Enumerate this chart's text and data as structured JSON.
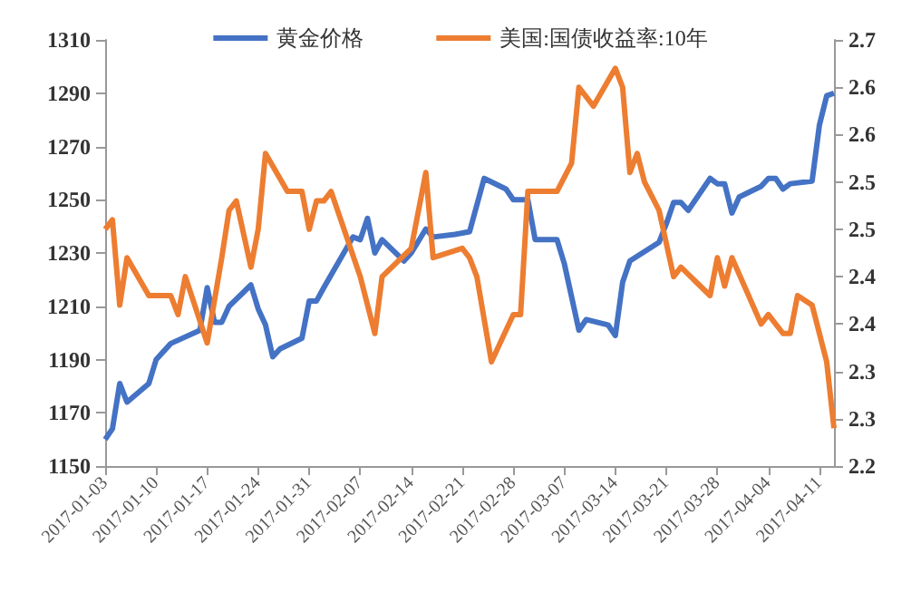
{
  "chart_data": {
    "type": "line",
    "legend": "top",
    "grid": false,
    "marker": "none",
    "line_style": "solid",
    "xlim": [
      "2017-01-03",
      "2017-04-13"
    ],
    "xticks": [
      "2017-01-03",
      "2017-01-10",
      "2017-01-17",
      "2017-01-24",
      "2017-01-31",
      "2017-02-07",
      "2017-02-14",
      "2017-02-21",
      "2017-02-28",
      "2017-03-07",
      "2017-03-14",
      "2017-03-21",
      "2017-03-28",
      "2017-04-04",
      "2017-04-11"
    ],
    "ylim": [
      1150,
      1310
    ],
    "yticks": [
      1150,
      1170,
      1190,
      1210,
      1230,
      1250,
      1270,
      1290,
      1310
    ],
    "y2lim": [
      2.2,
      2.65
    ],
    "y2ticks": [
      {
        "value": 2.2,
        "label": "2.2"
      },
      {
        "value": 2.25,
        "label": "2.3"
      },
      {
        "value": 2.3,
        "label": "2.3"
      },
      {
        "value": 2.35,
        "label": "2.4"
      },
      {
        "value": 2.4,
        "label": "2.4"
      },
      {
        "value": 2.45,
        "label": "2.5"
      },
      {
        "value": 2.5,
        "label": "2.5"
      },
      {
        "value": 2.55,
        "label": "2.6"
      },
      {
        "value": 2.6,
        "label": "2.6"
      },
      {
        "value": 2.65,
        "label": "2.7"
      }
    ],
    "series": [
      {
        "name": "黄金价格",
        "color": "#4472c4",
        "x": [
          "2017-01-03",
          "2017-01-04",
          "2017-01-05",
          "2017-01-06",
          "2017-01-09",
          "2017-01-10",
          "2017-01-12",
          "2017-01-16",
          "2017-01-17",
          "2017-01-18",
          "2017-01-19",
          "2017-01-20",
          "2017-01-23",
          "2017-01-24",
          "2017-01-25",
          "2017-01-26",
          "2017-01-27",
          "2017-01-30",
          "2017-01-31",
          "2017-02-01",
          "2017-02-02",
          "2017-02-06",
          "2017-02-07",
          "2017-02-08",
          "2017-02-09",
          "2017-02-10",
          "2017-02-13",
          "2017-02-14",
          "2017-02-16",
          "2017-02-17",
          "2017-02-20",
          "2017-02-22",
          "2017-02-24",
          "2017-02-27",
          "2017-02-28",
          "2017-03-02",
          "2017-03-03",
          "2017-03-06",
          "2017-03-07",
          "2017-03-09",
          "2017-03-10",
          "2017-03-13",
          "2017-03-14",
          "2017-03-15",
          "2017-03-16",
          "2017-03-20",
          "2017-03-21",
          "2017-03-22",
          "2017-03-23",
          "2017-03-24",
          "2017-03-27",
          "2017-03-28",
          "2017-03-29",
          "2017-03-30",
          "2017-03-31",
          "2017-04-03",
          "2017-04-04",
          "2017-04-05",
          "2017-04-06",
          "2017-04-07",
          "2017-04-10",
          "2017-04-11",
          "2017-04-12",
          "2017-04-13"
        ],
        "values": [
          1160,
          1164,
          1181,
          1174,
          1181,
          1190,
          1196,
          1201,
          1217,
          1204,
          1204,
          1210,
          1218,
          1209,
          1203,
          1191,
          1194,
          1198,
          1212,
          1212,
          1217,
          1236,
          1235,
          1243,
          1230,
          1235,
          1227,
          1230,
          1239,
          1236,
          1237,
          1238,
          1258,
          1254,
          1250,
          1250,
          1235,
          1235,
          1226,
          1201,
          1205,
          1203,
          1199,
          1219,
          1227,
          1234,
          1241,
          1249,
          1249,
          1246,
          1258,
          1256,
          1256,
          1245,
          1251,
          1255,
          1258,
          1258,
          1254,
          1256,
          1257,
          1278,
          1289,
          1290
        ]
      },
      {
        "name": "美国:国债收益率:10年",
        "color": "#ed7d31",
        "axis": "y2",
        "x": [
          "2017-01-03",
          "2017-01-04",
          "2017-01-05",
          "2017-01-06",
          "2017-01-09",
          "2017-01-12",
          "2017-01-13",
          "2017-01-14",
          "2017-01-17",
          "2017-01-19",
          "2017-01-20",
          "2017-01-21",
          "2017-01-23",
          "2017-01-24",
          "2017-01-25",
          "2017-01-28",
          "2017-01-30",
          "2017-01-31",
          "2017-02-01",
          "2017-02-02",
          "2017-02-03",
          "2017-02-07",
          "2017-02-09",
          "2017-02-10",
          "2017-02-14",
          "2017-02-16",
          "2017-02-17",
          "2017-02-21",
          "2017-02-22",
          "2017-02-23",
          "2017-02-25",
          "2017-02-28",
          "2017-03-01",
          "2017-03-02",
          "2017-03-06",
          "2017-03-08",
          "2017-03-09",
          "2017-03-11",
          "2017-03-14",
          "2017-03-15",
          "2017-03-16",
          "2017-03-17",
          "2017-03-18",
          "2017-03-20",
          "2017-03-22",
          "2017-03-23",
          "2017-03-27",
          "2017-03-28",
          "2017-03-29",
          "2017-03-30",
          "2017-04-03",
          "2017-04-04",
          "2017-04-06",
          "2017-04-07",
          "2017-04-08",
          "2017-04-10",
          "2017-04-12",
          "2017-04-13"
        ],
        "values": [
          2.45,
          2.46,
          2.37,
          2.42,
          2.38,
          2.38,
          2.36,
          2.4,
          2.33,
          2.42,
          2.47,
          2.48,
          2.41,
          2.45,
          2.53,
          2.49,
          2.49,
          2.45,
          2.48,
          2.48,
          2.49,
          2.4,
          2.34,
          2.4,
          2.43,
          2.51,
          2.42,
          2.43,
          2.42,
          2.4,
          2.31,
          2.36,
          2.36,
          2.49,
          2.49,
          2.52,
          2.6,
          2.58,
          2.62,
          2.6,
          2.51,
          2.53,
          2.5,
          2.47,
          2.4,
          2.41,
          2.38,
          2.42,
          2.39,
          2.42,
          2.35,
          2.36,
          2.34,
          2.34,
          2.38,
          2.37,
          2.31,
          2.24
        ]
      }
    ]
  }
}
